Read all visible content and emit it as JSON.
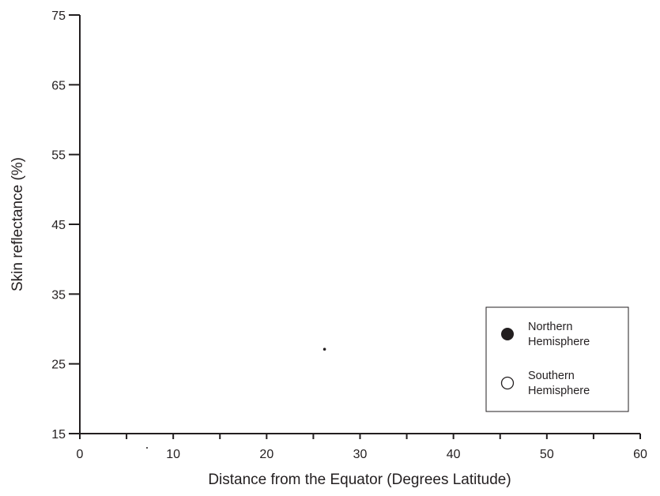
{
  "chart_data": {
    "type": "scatter",
    "title": "",
    "xlabel": "Distance from the Equator (Degrees Latitude)",
    "ylabel": "Skin reflectance (%)",
    "xlim": [
      0,
      60
    ],
    "ylim": [
      15,
      75
    ],
    "x_ticks": [
      0,
      10,
      20,
      30,
      40,
      50,
      60
    ],
    "x_tick_labels": [
      "0",
      "10",
      "20",
      "30",
      "40",
      "50",
      "60"
    ],
    "x_minor_ticks": [
      5,
      15,
      25,
      35,
      45,
      55
    ],
    "y_ticks": [
      15,
      25,
      35,
      45,
      55,
      65,
      75
    ],
    "y_tick_labels": [
      "15",
      "25",
      "35",
      "45",
      "55",
      "65",
      "75"
    ],
    "grid": false,
    "legend_position": "bottom-right",
    "series": [
      {
        "name": "Northern Hemisphere",
        "marker": "filled-circle",
        "color": "#231f20",
        "points": [
          {
            "x": 26.2,
            "y": 27.1
          }
        ]
      },
      {
        "name": "Southern Hemisphere",
        "marker": "open-circle",
        "color": "#231f20",
        "points": []
      }
    ],
    "legend": {
      "northern_line1": "Northern",
      "northern_line2": "Hemisphere",
      "southern_line1": "Southern",
      "southern_line2": "Hemisphere"
    }
  }
}
